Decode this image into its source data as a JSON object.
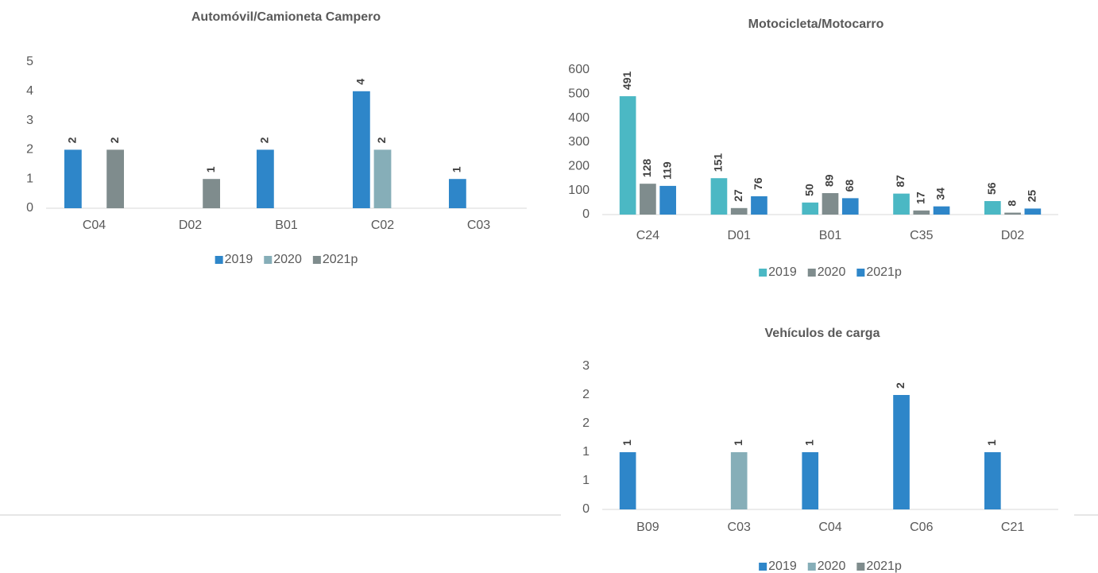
{
  "chart_data": [
    {
      "type": "bar",
      "title": "Automóvil/Camioneta Campero",
      "categories": [
        "C04",
        "D02",
        "B01",
        "C02",
        "C03"
      ],
      "series": [
        {
          "name": "2019",
          "color": "#2e86c9",
          "values": [
            2,
            null,
            2,
            4,
            1
          ]
        },
        {
          "name": "2020",
          "color": "#86aeb8",
          "values": [
            null,
            null,
            null,
            2,
            null
          ]
        },
        {
          "name": "2021p",
          "color": "#7f8c8d",
          "values": [
            2,
            1,
            null,
            null,
            null
          ]
        }
      ],
      "ylim": [
        0,
        5
      ],
      "yticks": [
        0,
        1,
        2,
        3,
        4,
        5
      ],
      "grid": false,
      "legend": "bottom"
    },
    {
      "type": "bar",
      "title": "Motocicleta/Motocarro",
      "categories": [
        "C24",
        "D01",
        "B01",
        "C35",
        "D02"
      ],
      "series": [
        {
          "name": "2019",
          "color": "#4bb8c4",
          "values": [
            491,
            151,
            50,
            87,
            56
          ]
        },
        {
          "name": "2020",
          "color": "#7f8c8d",
          "values": [
            128,
            27,
            89,
            17,
            8
          ]
        },
        {
          "name": "2021p",
          "color": "#2e86c9",
          "values": [
            119,
            76,
            68,
            34,
            25
          ]
        }
      ],
      "ylim": [
        0,
        600
      ],
      "yticks": [
        0,
        100,
        200,
        300,
        400,
        500,
        600
      ],
      "grid": false,
      "legend": "bottom"
    },
    {
      "type": "bar",
      "title": "Vehículos de carga",
      "categories": [
        "B09",
        "C03",
        "C04",
        "C06",
        "C21"
      ],
      "series": [
        {
          "name": "2019",
          "color": "#2e86c9",
          "values": [
            1,
            null,
            1,
            2,
            1
          ]
        },
        {
          "name": "2020",
          "color": "#86aeb8",
          "values": [
            null,
            1,
            null,
            null,
            null
          ]
        },
        {
          "name": "2021p",
          "color": "#7f8c8d",
          "values": [
            null,
            null,
            null,
            null,
            null
          ]
        }
      ],
      "ylim": [
        0,
        2.5
      ],
      "yticks": [
        0,
        {
          "value": 0.5,
          "label": "1"
        },
        1,
        {
          "value": 1.5,
          "label": "2"
        },
        2,
        {
          "value": 2.5,
          "label": "3"
        }
      ],
      "grid": false,
      "legend": "bottom"
    }
  ]
}
